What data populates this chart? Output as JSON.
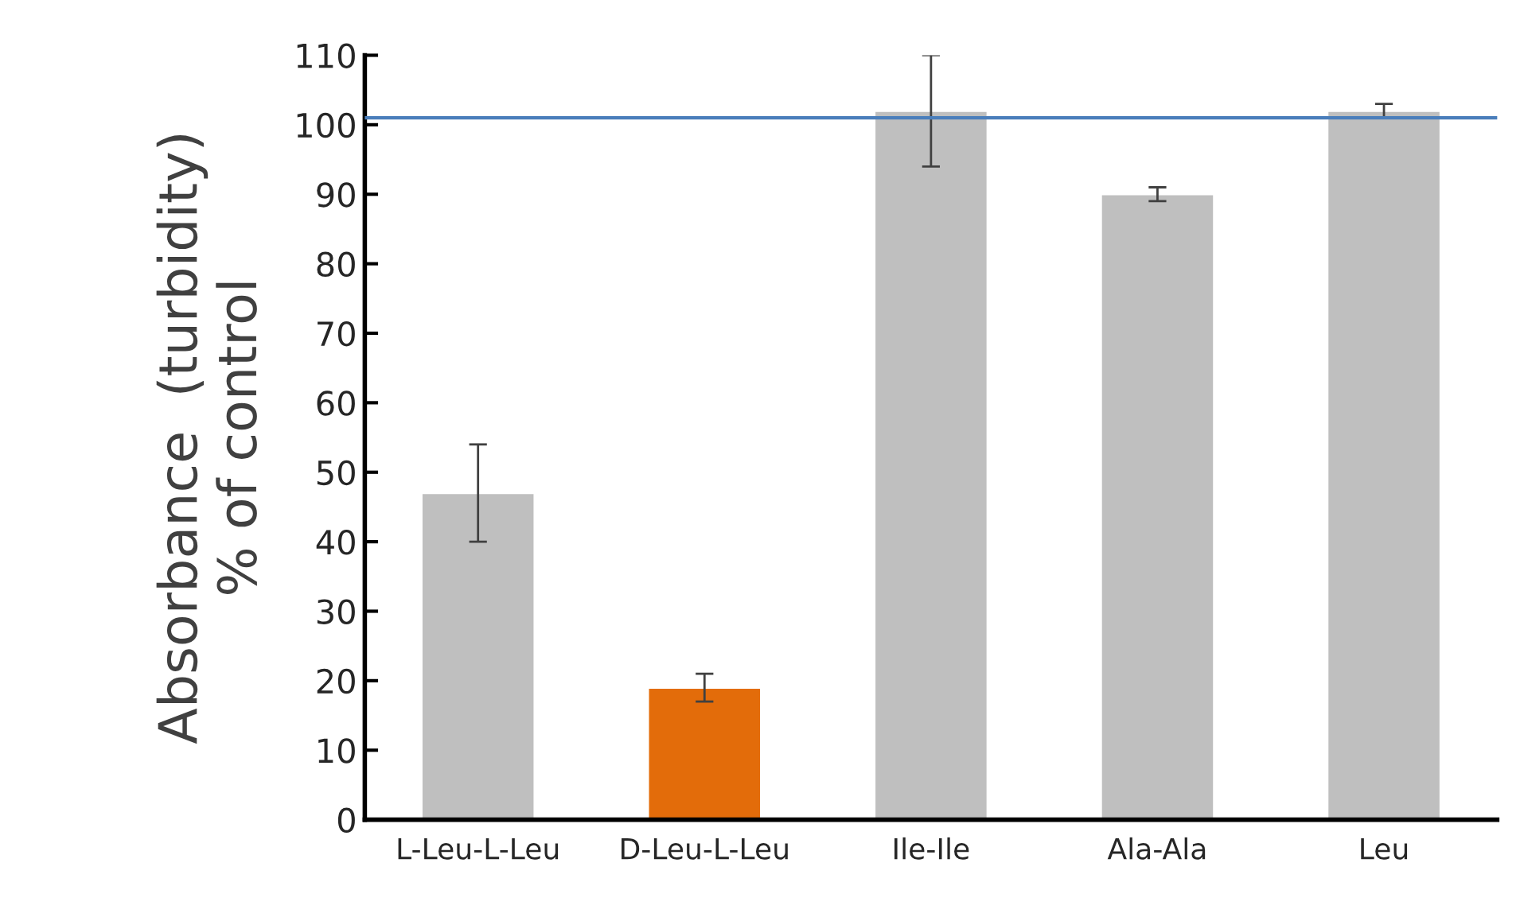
{
  "chart_data": {
    "type": "bar",
    "ylabel": "Absorbance  (turbidity)\n% of control",
    "categories": [
      "L-Leu-L-Leu",
      "D-Leu-L-Leu",
      "Ile-Ile",
      "Ala-Ala",
      "Leu"
    ],
    "values": [
      47,
      19,
      102,
      90,
      102
    ],
    "colors": [
      "#bfbfbf",
      "#e36c0a",
      "#bfbfbf",
      "#bfbfbf",
      "#bfbfbf"
    ],
    "errors": [
      [
        40,
        54
      ],
      [
        17,
        21
      ],
      [
        94,
        110
      ],
      [
        89,
        91
      ],
      [
        101,
        103
      ]
    ],
    "ylim": [
      0,
      110
    ],
    "yticks": [
      0,
      10,
      20,
      30,
      40,
      50,
      60,
      70,
      80,
      90,
      100,
      110
    ],
    "ref_lines": [
      {
        "axis": "y",
        "value": 101,
        "color": "#4a7ebb"
      }
    ],
    "grid": false,
    "legend": false
  }
}
